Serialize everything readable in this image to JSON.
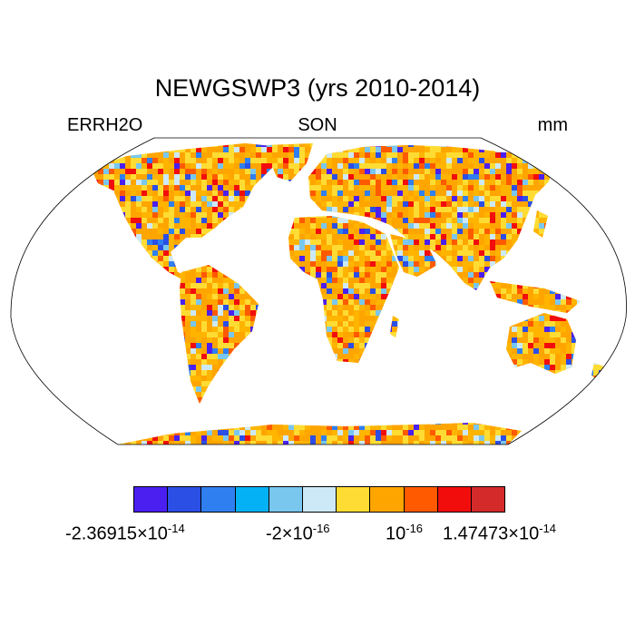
{
  "title": "NEWGSWP3 (yrs 2010-2014)",
  "subtitle_left": "ERRH2O",
  "subtitle_center": "SON",
  "subtitle_right": "mm",
  "colorbar": {
    "colors": [
      "#4a1ff0",
      "#2b4ee5",
      "#2f7ff0",
      "#05b1f5",
      "#79c7ef",
      "#cde9f8",
      "#ffdc33",
      "#ffa500",
      "#ff5a00",
      "#f20d0d",
      "#d42a2a"
    ]
  },
  "labels": {
    "min": {
      "mant": "-2.36915",
      "exp": "-14"
    },
    "neg_small": {
      "mant": "-2",
      "exp": "-16"
    },
    "pos_small": {
      "base": "10",
      "exp": "-16"
    },
    "max": {
      "mant": "1.47473",
      "exp": "-14"
    }
  },
  "map_data": {
    "projection": "Robinson",
    "field": "ERRH2O",
    "season": "SON",
    "units": "mm",
    "dominant_color": "#ffb400"
  }
}
